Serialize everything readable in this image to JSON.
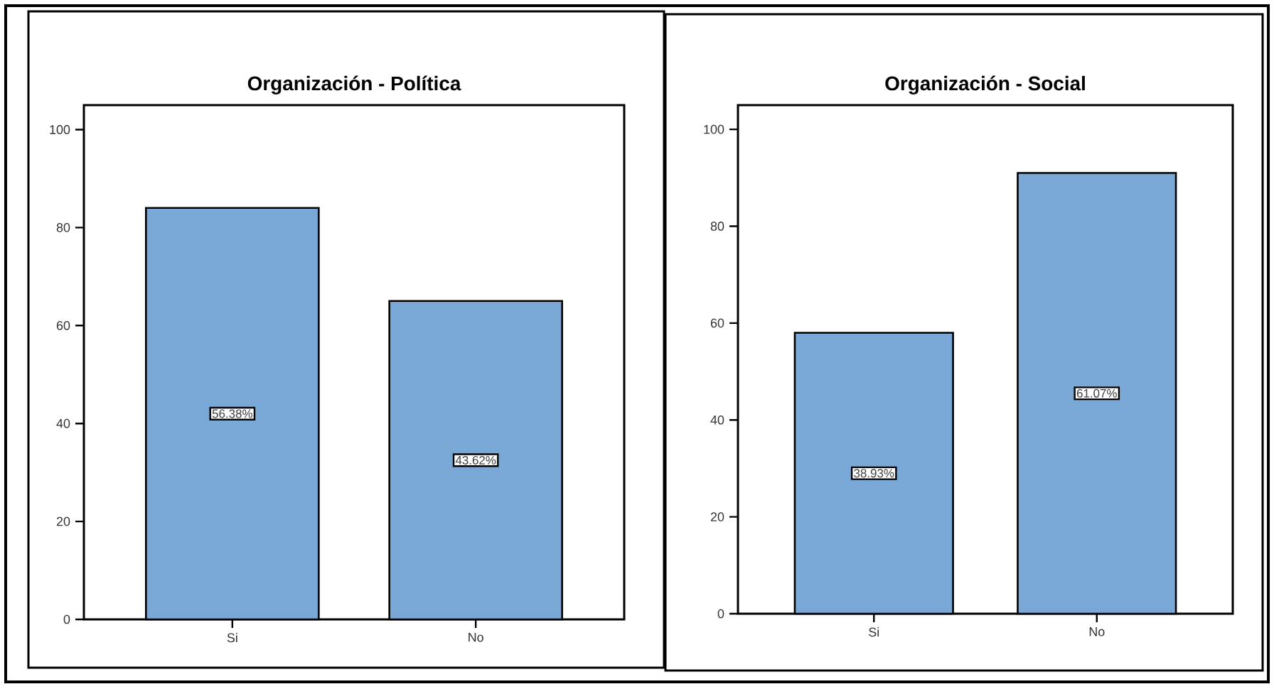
{
  "chart_data": [
    {
      "type": "bar",
      "title": "Organización - Política",
      "categories": [
        "Si",
        "No"
      ],
      "values": [
        84,
        65
      ],
      "color": "#7aa8d6",
      "ylim": [
        0,
        105
      ],
      "yticks": [
        0,
        20,
        40,
        60,
        80,
        100
      ],
      "annotations": [
        "56.38%",
        "43.62%"
      ]
    },
    {
      "type": "bar",
      "title": "Organización - Social",
      "categories": [
        "Si",
        "No"
      ],
      "values": [
        58,
        91
      ],
      "color": "#7aa8d6",
      "ylim": [
        0,
        105
      ],
      "yticks": [
        0,
        20,
        40,
        60,
        80,
        100
      ],
      "annotations": [
        "38.93%",
        "61.07%"
      ]
    }
  ]
}
